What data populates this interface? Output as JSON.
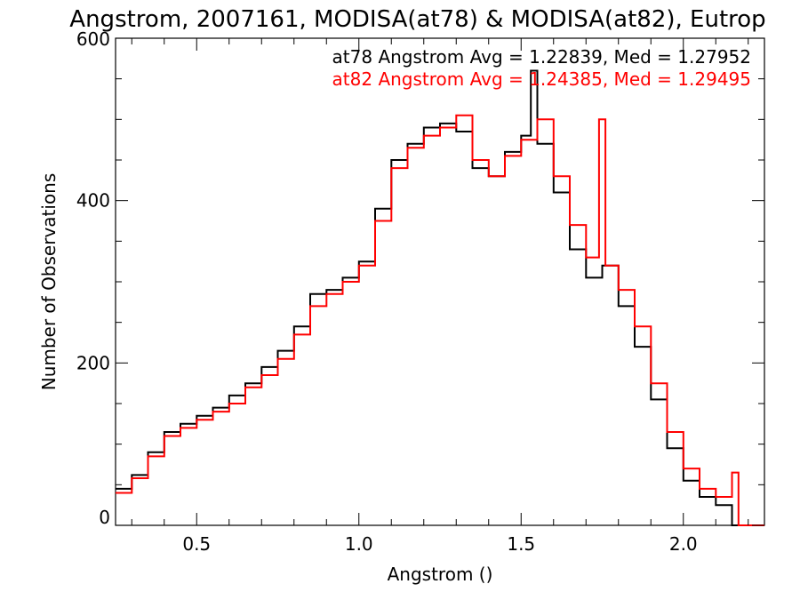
{
  "chart_data": {
    "type": "line",
    "title": "Angstrom, 2007161, MODISA(at78) & MODISA(at82), Eutrop",
    "xlabel": "Angstrom ()",
    "ylabel": "Number of Observations",
    "xlim": [
      0.25,
      2.25
    ],
    "ylim": [
      0,
      600
    ],
    "xticks": [
      0.5,
      1.0,
      1.5,
      2.0
    ],
    "xtick_labels": [
      "0.5",
      "1.0",
      "1.5",
      "2.0"
    ],
    "yticks": [
      0,
      200,
      400,
      600
    ],
    "ytick_labels": [
      "0",
      "200",
      "400",
      "600"
    ],
    "grid": false,
    "legend_position": "top-right",
    "annotations": [
      {
        "text": "at78 Angstrom Avg = 1.22839, Med = 1.27952",
        "color": "#000000"
      },
      {
        "text": "at82 Angstrom Avg = 1.24385, Med = 1.29495",
        "color": "#ff0000"
      }
    ],
    "series": [
      {
        "color": "#000000",
        "x": [
          0.25,
          0.3,
          0.35,
          0.4,
          0.45,
          0.5,
          0.55,
          0.6,
          0.65,
          0.7,
          0.75,
          0.8,
          0.85,
          0.9,
          0.95,
          1.0,
          1.05,
          1.1,
          1.15,
          1.2,
          1.25,
          1.3,
          1.35,
          1.4,
          1.45,
          1.5,
          1.53,
          1.55,
          1.6,
          1.65,
          1.7,
          1.75,
          1.8,
          1.85,
          1.9,
          1.95,
          2.0,
          2.05,
          2.1,
          2.15,
          2.2,
          2.25
        ],
        "y": [
          45,
          62,
          90,
          115,
          125,
          135,
          145,
          160,
          175,
          195,
          215,
          245,
          285,
          290,
          305,
          325,
          390,
          450,
          470,
          490,
          495,
          485,
          440,
          430,
          460,
          480,
          560,
          470,
          410,
          340,
          305,
          320,
          270,
          220,
          155,
          95,
          55,
          35,
          25,
          0,
          0,
          0
        ]
      },
      {
        "color": "#ff0000",
        "x": [
          0.25,
          0.3,
          0.35,
          0.4,
          0.45,
          0.5,
          0.55,
          0.6,
          0.65,
          0.7,
          0.75,
          0.8,
          0.85,
          0.9,
          0.95,
          1.0,
          1.05,
          1.1,
          1.15,
          1.2,
          1.25,
          1.3,
          1.35,
          1.4,
          1.45,
          1.5,
          1.55,
          1.6,
          1.65,
          1.7,
          1.74,
          1.76,
          1.8,
          1.85,
          1.9,
          1.95,
          2.0,
          2.05,
          2.1,
          2.15,
          2.17,
          2.2,
          2.25
        ],
        "y": [
          40,
          58,
          85,
          110,
          120,
          130,
          140,
          150,
          170,
          185,
          205,
          235,
          270,
          285,
          300,
          320,
          375,
          440,
          465,
          480,
          490,
          505,
          450,
          430,
          455,
          475,
          500,
          430,
          370,
          330,
          500,
          320,
          290,
          245,
          175,
          115,
          70,
          45,
          35,
          65,
          0,
          0,
          0
        ]
      }
    ]
  }
}
